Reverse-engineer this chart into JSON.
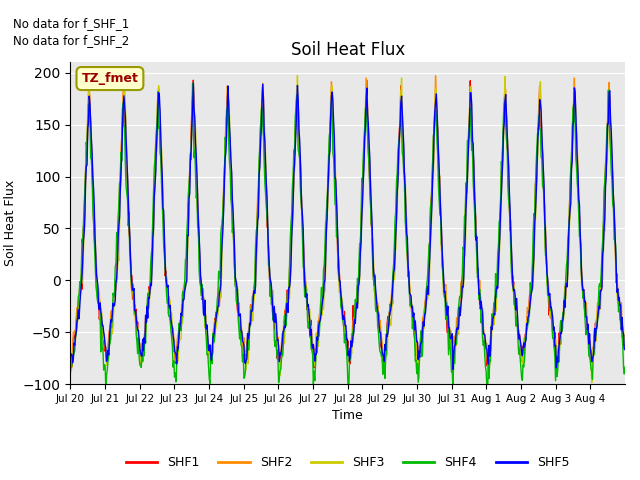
{
  "title": "Soil Heat Flux",
  "xlabel": "Time",
  "ylabel": "Soil Heat Flux",
  "ylim": [
    -100,
    210
  ],
  "yticks": [
    -100,
    -50,
    0,
    50,
    100,
    150,
    200
  ],
  "annotation1": "No data for f_SHF_1",
  "annotation2": "No data for f_SHF_2",
  "tz_label": "TZ_fmet",
  "colors": {
    "SHF1": "#ff0000",
    "SHF2": "#ff8c00",
    "SHF3": "#cccc00",
    "SHF4": "#00bb00",
    "SHF5": "#0000ff"
  },
  "legend_entries": [
    "SHF1",
    "SHF2",
    "SHF3",
    "SHF4",
    "SHF5"
  ],
  "xtick_labels": [
    "Jul 20",
    "Jul 21",
    "Jul 22",
    "Jul 23",
    "Jul 24",
    "Jul 25",
    "Jul 26",
    "Jul 27",
    "Jul 28",
    "Jul 29",
    "Jul 30",
    "Jul 31",
    "Aug 1",
    "Aug 2",
    "Aug 3",
    "Aug 4"
  ],
  "n_days": 16,
  "pts_per_day": 48
}
